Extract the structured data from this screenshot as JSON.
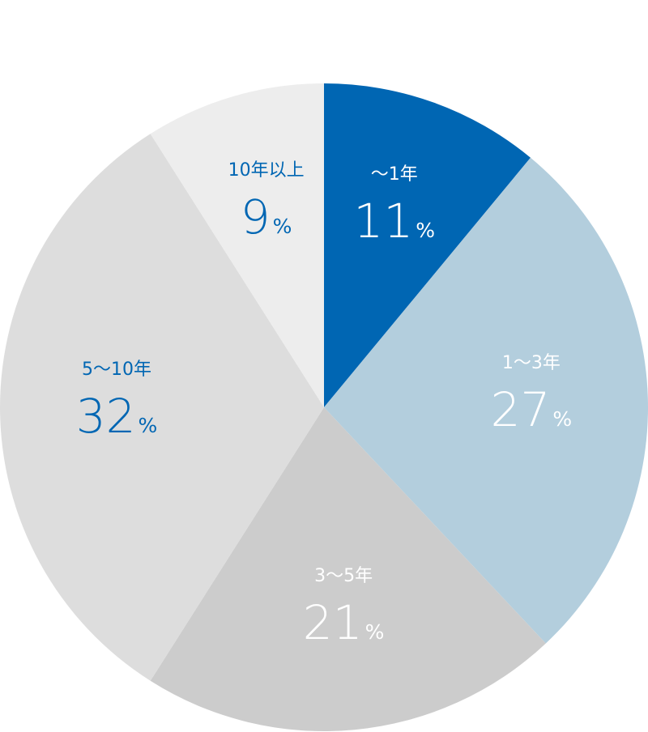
{
  "chart_data": {
    "type": "pie",
    "start_angle_deg": 0,
    "direction": "clockwise",
    "slices": [
      {
        "label": "〜1年",
        "value": 11,
        "unit": "%",
        "color": "#0066b3",
        "text_color": "#ffffff"
      },
      {
        "label": "1〜3年",
        "value": 27,
        "unit": "%",
        "color": "#b3cedd",
        "text_color": "#ffffff"
      },
      {
        "label": "3〜5年",
        "value": 21,
        "unit": "%",
        "color": "#cccccc",
        "text_color": "#ffffff"
      },
      {
        "label": "5〜10年",
        "value": 32,
        "unit": "%",
        "color": "#dddddd",
        "text_color": "#0066b3"
      },
      {
        "label": "10年以上",
        "value": 9,
        "unit": "%",
        "color": "#ededed",
        "text_color": "#0066b3"
      }
    ]
  }
}
